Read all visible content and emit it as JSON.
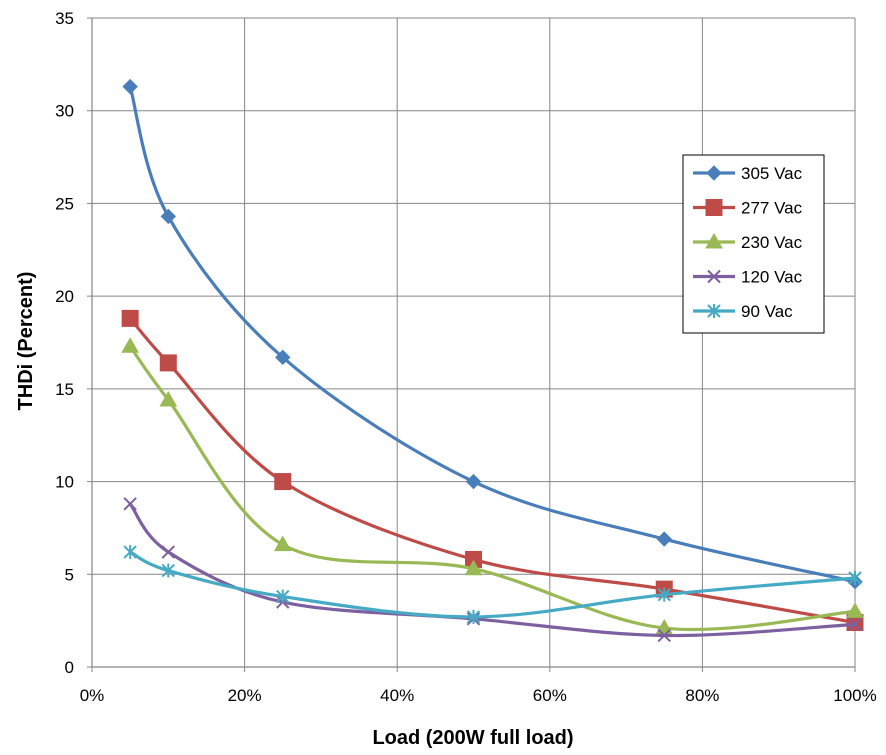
{
  "chart_data": {
    "type": "line",
    "title": "",
    "xlabel": "Load (200W full load)",
    "ylabel": "THDi (Percent)",
    "xlim": [
      0,
      100
    ],
    "ylim": [
      0,
      35
    ],
    "x_ticks": [
      0,
      20,
      40,
      60,
      80,
      100
    ],
    "x_tick_labels": [
      "0%",
      "20%",
      "40%",
      "60%",
      "80%",
      "100%"
    ],
    "y_ticks": [
      0,
      5,
      10,
      15,
      20,
      25,
      30,
      35
    ],
    "y_tick_labels": [
      "0",
      "5",
      "10",
      "15",
      "20",
      "25",
      "30",
      "35"
    ],
    "grid": true,
    "legend_position": "right",
    "x": [
      5,
      10,
      25,
      50,
      75,
      100
    ],
    "series": [
      {
        "name": "305 Vac",
        "color": "#4a7ebb",
        "marker": "diamond",
        "values": [
          31.3,
          24.3,
          16.7,
          10.0,
          6.9,
          4.6
        ]
      },
      {
        "name": "277 Vac",
        "color": "#be4b48",
        "marker": "square",
        "values": [
          18.8,
          16.4,
          10.0,
          5.8,
          4.2,
          2.4
        ]
      },
      {
        "name": "230 Vac",
        "color": "#98b954",
        "marker": "triangle",
        "values": [
          17.3,
          14.4,
          6.6,
          5.3,
          2.1,
          3.0
        ]
      },
      {
        "name": "120 Vac",
        "color": "#7d60a0",
        "marker": "x",
        "values": [
          8.8,
          6.2,
          3.5,
          2.6,
          1.7,
          2.3
        ]
      },
      {
        "name": "90 Vac",
        "color": "#46aac5",
        "marker": "star",
        "values": [
          6.2,
          5.2,
          3.8,
          2.7,
          3.9,
          4.8
        ]
      }
    ]
  }
}
